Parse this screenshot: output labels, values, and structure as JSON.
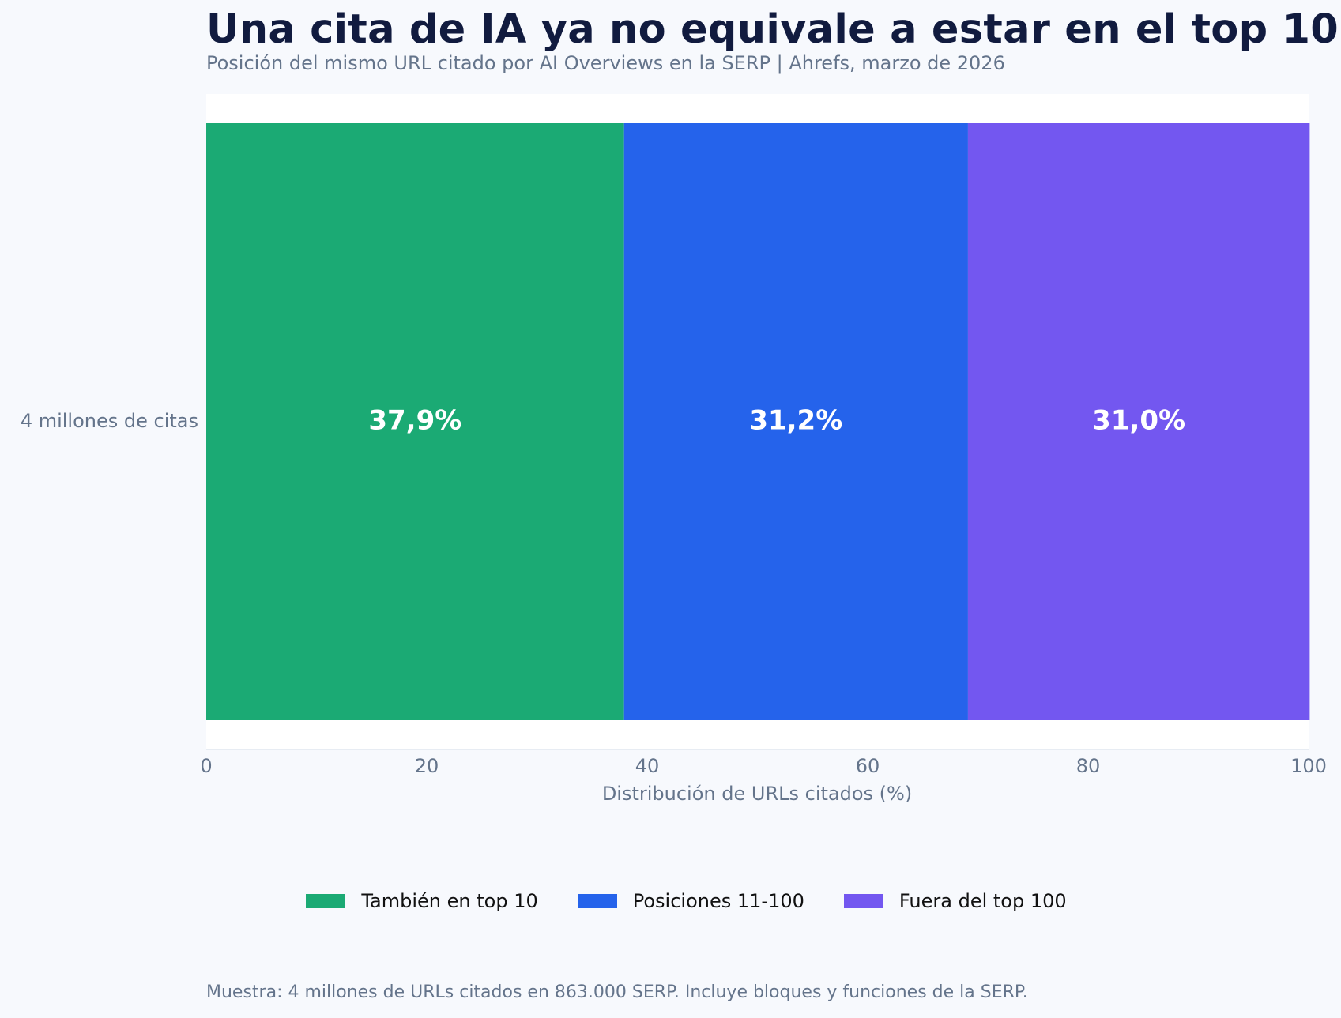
{
  "chart_data": {
    "type": "bar",
    "orientation": "horizontal",
    "stacked": true,
    "title": "Una cita de IA ya no equivale a estar en el top 10",
    "subtitle": "Posición del mismo URL citado por AI Overviews en la SERP | Ahrefs, marzo de 2026",
    "categories": [
      "4 millones de citas"
    ],
    "series": [
      {
        "name": "También en top 10",
        "values": [
          37.9
        ],
        "label": "37,9%",
        "color": "#1baa74"
      },
      {
        "name": "Posiciones 11-100",
        "values": [
          31.2
        ],
        "label": "31,2%",
        "color": "#2563eb"
      },
      {
        "name": "Fuera del top 100",
        "values": [
          31.0
        ],
        "label": "31,0%",
        "color": "#7357f0"
      }
    ],
    "xlabel": "Distribución de URLs citados (%)",
    "ylabel": "",
    "xlim": [
      0,
      100
    ],
    "xticks": [
      0,
      20,
      40,
      60,
      80,
      100
    ],
    "xtick_labels": [
      "0",
      "20",
      "40",
      "60",
      "80",
      "100"
    ],
    "grid": false,
    "legend_position": "bottom-center",
    "footnote": "Muestra: 4 millones de URLs citados en 863.000 SERP. Incluye bloques y funciones de la SERP."
  }
}
